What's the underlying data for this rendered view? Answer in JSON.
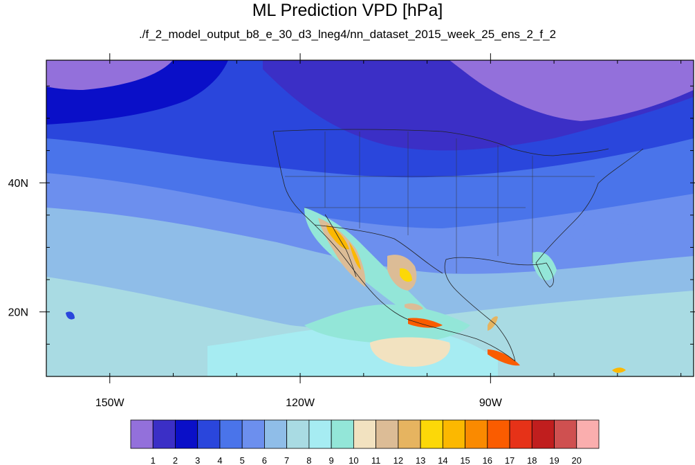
{
  "title": "ML Prediction VPD [hPa]",
  "subtitle": "./f_2_model_output_b8_e_30_d3_lneg4/nn_dataset_2015_week_25_ens_2_f_2",
  "map": {
    "lon_range": [
      -160,
      -58
    ],
    "lat_range": [
      10,
      59
    ],
    "lon_ticks": [
      {
        "lon": -150,
        "label": "150W"
      },
      {
        "lon": -120,
        "label": "120W"
      },
      {
        "lon": -90,
        "label": "90W"
      }
    ],
    "lat_ticks": [
      {
        "lat": 40,
        "label": "40N"
      },
      {
        "lat": 20,
        "label": "20N"
      }
    ]
  },
  "colorbar": {
    "labels": [
      "1",
      "2",
      "3",
      "4",
      "5",
      "6",
      "7",
      "8",
      "9",
      "10",
      "11",
      "12",
      "13",
      "14",
      "15",
      "16",
      "17",
      "18",
      "19",
      "20"
    ],
    "colors": [
      "#9370db",
      "#3b2fc6",
      "#0a0fc8",
      "#2a46dc",
      "#4a74ea",
      "#6c8fee",
      "#8fbde8",
      "#a9dbe3",
      "#a6ecf2",
      "#93e6d8",
      "#f2e2c0",
      "#dcbc96",
      "#e6b460",
      "#fcd808",
      "#fcb800",
      "#fa8a00",
      "#fa5c00",
      "#e63218",
      "#c01e1e",
      "#cf5050",
      "#faaeae"
    ]
  }
}
